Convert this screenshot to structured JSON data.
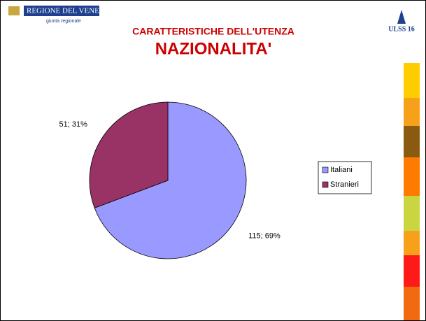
{
  "header": {
    "org": "REGIONE DEL VENETO",
    "org_sub": "giunta regionale",
    "logo": "ULSS 16"
  },
  "chart_data": {
    "type": "pie",
    "title": "CARATTERISTICHE DELL'UTENZA",
    "subtitle": "NAZIONALITA'",
    "categories": [
      "Italiani",
      "Stranieri"
    ],
    "values": [
      115,
      51
    ],
    "value_labels": [
      "115; 69%",
      "51; 31%"
    ],
    "colors": [
      "#9999ff",
      "#993366"
    ],
    "legend": "right"
  }
}
